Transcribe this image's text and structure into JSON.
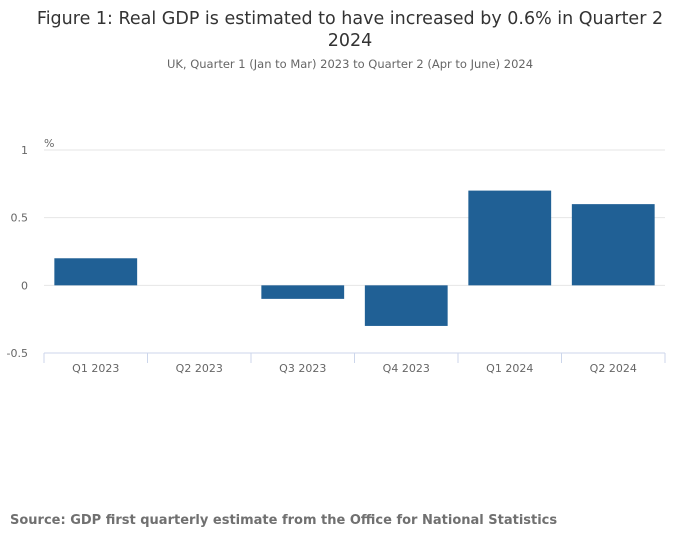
{
  "chart_data": {
    "type": "bar",
    "title": "Figure 1: Real GDP is estimated to have increased by 0.6% in Quarter 2 2024",
    "subtitle": "UK, Quarter 1 (Jan to Mar) 2023 to Quarter 2 (Apr to June) 2024",
    "xlabel": "",
    "ylabel": "%",
    "categories": [
      "Q1 2023",
      "Q2 2023",
      "Q3 2023",
      "Q4 2023",
      "Q1 2024",
      "Q2 2024"
    ],
    "values": [
      0.2,
      0.0,
      -0.1,
      -0.3,
      0.7,
      0.6
    ],
    "ylim": [
      -0.5,
      1
    ],
    "yticks": [
      "1",
      "0.5",
      "0",
      "-0.5"
    ],
    "ytick_values": [
      1,
      0.5,
      0,
      -0.5
    ],
    "grid": true,
    "bar_color": "#206095",
    "source": "Source: GDP first quarterly estimate from the Office for National Statistics"
  }
}
